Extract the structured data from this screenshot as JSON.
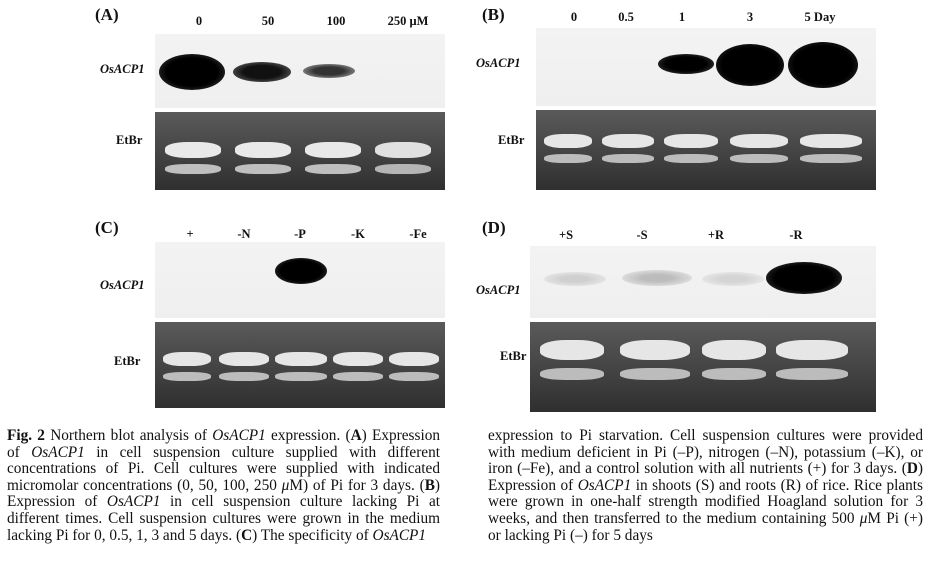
{
  "figure": {
    "panels": [
      {
        "id": "A",
        "label": "(A)",
        "lane_labels": [
          "0",
          "50",
          "100",
          "250 μM"
        ],
        "gene_label": "OsACP1",
        "stain_label": "EtBr",
        "band_intensities": [
          1.0,
          0.7,
          0.45,
          0.0
        ]
      },
      {
        "id": "B",
        "label": "(B)",
        "lane_labels": [
          "0",
          "0.5",
          "1",
          "3",
          "5  Day"
        ],
        "gene_label": "OsACP1",
        "stain_label": "EtBr",
        "band_intensities": [
          0.0,
          0.0,
          0.8,
          1.0,
          1.0
        ]
      },
      {
        "id": "C",
        "label": "(C)",
        "lane_labels": [
          "+",
          "-N",
          "-P",
          "-K",
          "-Fe"
        ],
        "gene_label": "OsACP1",
        "stain_label": "EtBr",
        "band_intensities": [
          0.0,
          0.0,
          0.95,
          0.0,
          0.0
        ]
      },
      {
        "id": "D",
        "label": "(D)",
        "lane_labels": [
          "+S",
          "-S",
          "+R",
          "-R"
        ],
        "gene_label": "OsACP1",
        "stain_label": "EtBr",
        "band_intensities": [
          0.08,
          0.12,
          0.06,
          0.95
        ]
      }
    ],
    "caption": {
      "col1": [
        {
          "t": "Fig. 2",
          "b": true
        },
        {
          "t": "  Northern blot analysis of "
        },
        {
          "t": "OsACP1",
          "i": true
        },
        {
          "t": " expression. ("
        },
        {
          "t": "A",
          "b": true
        },
        {
          "t": ") Expression of "
        },
        {
          "t": "OsACP1",
          "i": true
        },
        {
          "t": " in cell suspension culture supplied with different concentrations of Pi. Cell cultures were supplied with indicated micromolar concentrations (0, 50, 100, 250 "
        },
        {
          "t": "μ",
          "i": true
        },
        {
          "t": "M) of Pi for 3 days. ("
        },
        {
          "t": "B",
          "b": true
        },
        {
          "t": ") Expression of "
        },
        {
          "t": "OsACP1",
          "i": true
        },
        {
          "t": " in cell suspension culture lacking Pi at different times. Cell suspension cultures were grown in the medium lacking Pi for 0, 0.5, 1, 3 and 5 days. ("
        },
        {
          "t": "C",
          "b": true
        },
        {
          "t": ") The specificity of "
        },
        {
          "t": "OsACP1",
          "i": true
        }
      ],
      "col2": [
        {
          "t": "expression to Pi starvation. Cell suspension cultures were provided with medium deficient in Pi (–P), nitrogen (–N), potassium (–K), or iron (–Fe), and a control solution with all nutrients (+) for 3 days. ("
        },
        {
          "t": "D",
          "b": true
        },
        {
          "t": ") Expression of "
        },
        {
          "t": "OsACP1",
          "i": true
        },
        {
          "t": " in shoots (S) and roots (R) of rice. Rice plants were grown in one-half strength modified Hoagland solution for 3 weeks, and then transferred to the medium containing 500 "
        },
        {
          "t": "μ",
          "i": true
        },
        {
          "t": "M Pi (+) or lacking Pi (–) for 5 days"
        }
      ]
    }
  }
}
